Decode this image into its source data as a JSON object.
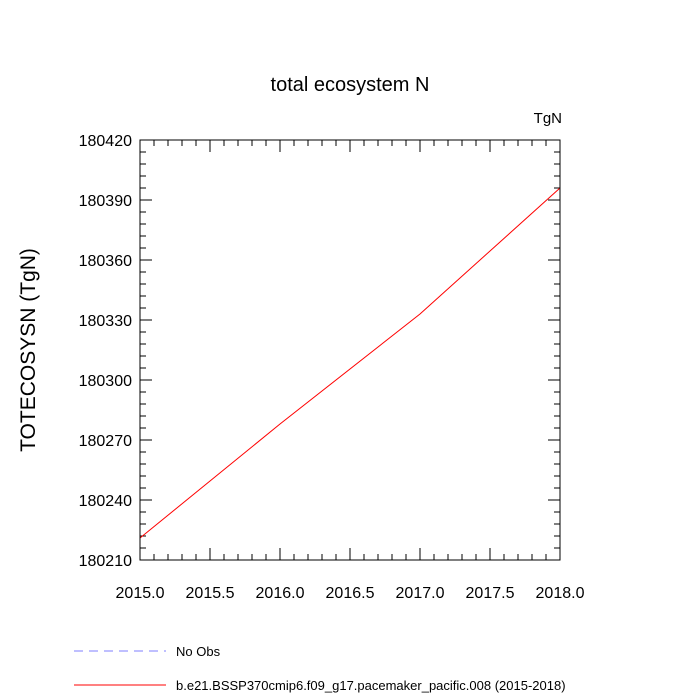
{
  "chart_data": {
    "type": "line",
    "title": "total ecosystem N",
    "units_label": "TgN",
    "ylabel": "TOTECOSYSN  (TgN)",
    "xlabel": "",
    "xlim": [
      2015.0,
      2018.0
    ],
    "ylim": [
      180210,
      180420
    ],
    "x_ticks": [
      "2015.0",
      "2015.5",
      "2016.0",
      "2016.5",
      "2017.0",
      "2017.5",
      "2018.0"
    ],
    "y_ticks": [
      "180210",
      "180240",
      "180270",
      "180300",
      "180330",
      "180360",
      "180390",
      "180420"
    ],
    "series": [
      {
        "name": "b.e21.BSSP370cmip6.f09_g17.pacemaker_pacific.008 (2015-2018)",
        "color": "#ff0000",
        "style": "solid",
        "x": [
          2015.0,
          2016.0,
          2017.0,
          2018.0
        ],
        "y": [
          180221,
          180278,
          180333,
          180396
        ]
      }
    ],
    "legend": {
      "placement": "bottom-left",
      "entries": [
        {
          "label": "No Obs",
          "color": "#7f7fff",
          "style": "dashed"
        },
        {
          "label": "b.e21.BSSP370cmip6.f09_g17.pacemaker_pacific.008 (2015-2018)",
          "color": "#ff0000",
          "style": "solid"
        }
      ]
    },
    "grid": false
  }
}
